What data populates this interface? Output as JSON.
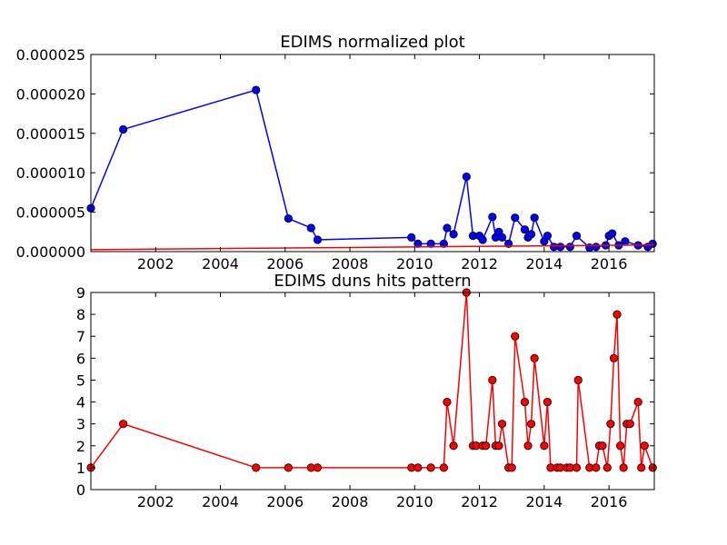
{
  "figure_title": "",
  "chart_data": [
    {
      "type": "line",
      "title": "EDIMS normalized plot",
      "xlabel": "",
      "ylabel": "",
      "xlim": [
        2000.0,
        2017.4
      ],
      "ylim": [
        0,
        2.5e-05
      ],
      "grid": false,
      "xticks": [
        "2002",
        "2004",
        "2006",
        "2008",
        "2010",
        "2012",
        "2014",
        "2016"
      ],
      "yticks": [
        "0.000000",
        "0.000005",
        "0.000010",
        "0.000015",
        "0.000020",
        "0.000025"
      ],
      "series": [
        {
          "style": "line+markers",
          "color": "#0000ff",
          "marker_fill": "#0000ff",
          "x": [
            2000.0,
            2001.0,
            2005.1,
            2006.1,
            2006.8,
            2007.0,
            2009.9,
            2010.1,
            2010.5,
            2010.9,
            2011.0,
            2011.2,
            2011.6,
            2011.8,
            2012.0,
            2012.1,
            2012.4,
            2012.5,
            2012.6,
            2012.7,
            2012.9,
            2013.1,
            2013.4,
            2013.5,
            2013.6,
            2013.7,
            2014.0,
            2014.1,
            2014.3,
            2014.5,
            2014.8,
            2015.0,
            2015.4,
            2015.6,
            2015.9,
            2016.0,
            2016.1,
            2016.3,
            2016.5,
            2016.9,
            2017.2,
            2017.35
          ],
          "y": [
            5.5e-06,
            1.55e-05,
            2.05e-05,
            4.2e-06,
            3e-06,
            1.5e-06,
            1.8e-06,
            1e-06,
            1e-06,
            1e-06,
            3e-06,
            2.2e-06,
            9.5e-06,
            2e-06,
            2e-06,
            1.5e-06,
            4.4e-06,
            1.8e-06,
            2.5e-06,
            1.8e-06,
            1e-06,
            4.3e-06,
            2.8e-06,
            1.8e-06,
            2.2e-06,
            4.3e-06,
            1.3e-06,
            2e-06,
            6e-07,
            6e-07,
            6e-07,
            2e-06,
            5e-07,
            6e-07,
            8e-07,
            2e-06,
            2.3e-06,
            8e-07,
            1.3e-06,
            8e-07,
            6e-07,
            1e-06
          ]
        },
        {
          "style": "line",
          "color": "#ff0000",
          "x": [
            2000.0,
            2017.4
          ],
          "y": [
            2.5e-07,
            8.5e-07
          ]
        }
      ]
    },
    {
      "type": "line",
      "title": "EDIMS duns hits pattern",
      "xlabel": "",
      "ylabel": "",
      "xlim": [
        2000.0,
        2017.4
      ],
      "ylim": [
        0,
        9
      ],
      "grid": false,
      "xticks": [
        "2002",
        "2004",
        "2006",
        "2008",
        "2010",
        "2012",
        "2014",
        "2016"
      ],
      "yticks": [
        "0",
        "1",
        "2",
        "3",
        "4",
        "5",
        "6",
        "7",
        "8",
        "9"
      ],
      "series": [
        {
          "style": "line+markers",
          "color": "#ff0000",
          "marker_fill": "#ff0000",
          "x": [
            2000.0,
            2001.0,
            2005.1,
            2006.1,
            2006.8,
            2007.0,
            2009.9,
            2010.1,
            2010.5,
            2010.9,
            2011.0,
            2011.2,
            2011.6,
            2011.8,
            2011.9,
            2012.1,
            2012.2,
            2012.4,
            2012.5,
            2012.6,
            2012.7,
            2012.9,
            2013.0,
            2013.1,
            2013.4,
            2013.5,
            2013.6,
            2013.7,
            2014.0,
            2014.1,
            2014.2,
            2014.4,
            2014.5,
            2014.7,
            2014.8,
            2015.0,
            2015.05,
            2015.4,
            2015.6,
            2015.7,
            2015.8,
            2015.95,
            2016.05,
            2016.15,
            2016.25,
            2016.35,
            2016.45,
            2016.55,
            2016.65,
            2016.9,
            2017.0,
            2017.1,
            2017.35
          ],
          "y": [
            1,
            3,
            1,
            1,
            1,
            1,
            1,
            1,
            1,
            1,
            4,
            2,
            9,
            2,
            2,
            2,
            2,
            5,
            2,
            2,
            3,
            1,
            1,
            7,
            4,
            2,
            3,
            6,
            2,
            4,
            1,
            1,
            1,
            1,
            1,
            1,
            5,
            1,
            1,
            2,
            2,
            1,
            3,
            6,
            8,
            2,
            1,
            3,
            3,
            4,
            1,
            2,
            1
          ]
        }
      ]
    }
  ]
}
